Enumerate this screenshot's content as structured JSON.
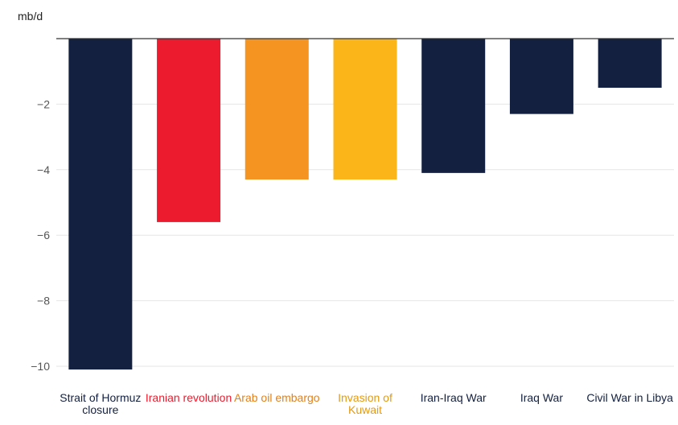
{
  "chart_data": {
    "type": "bar",
    "ylabel": "mb/d",
    "ylim": [
      -10.4,
      0.4
    ],
    "yticks": [
      -2,
      -4,
      -6,
      -8,
      -10
    ],
    "ytick_labels": [
      "−2",
      "−4",
      "−6",
      "−8",
      "−10"
    ],
    "grid": true,
    "categories": [
      "Strait of Hormuz closure",
      "Iranian revolution",
      "Arab oil embargo",
      "Invasion of Kuwait",
      "Iran-Iraq War",
      "Iraq War",
      "Civil War in Libya"
    ],
    "values": [
      -10.1,
      -5.6,
      -4.3,
      -4.3,
      -4.1,
      -2.3,
      -1.5
    ],
    "bar_colors": [
      "#13203f",
      "#ec1c2e",
      "#f59420",
      "#fbb519",
      "#13203f",
      "#13203f",
      "#13203f"
    ],
    "label_colors": [
      "#13203f",
      "#ec1c2e",
      "#e3801a",
      "#e39a12",
      "#13203f",
      "#13203f",
      "#13203f"
    ]
  }
}
